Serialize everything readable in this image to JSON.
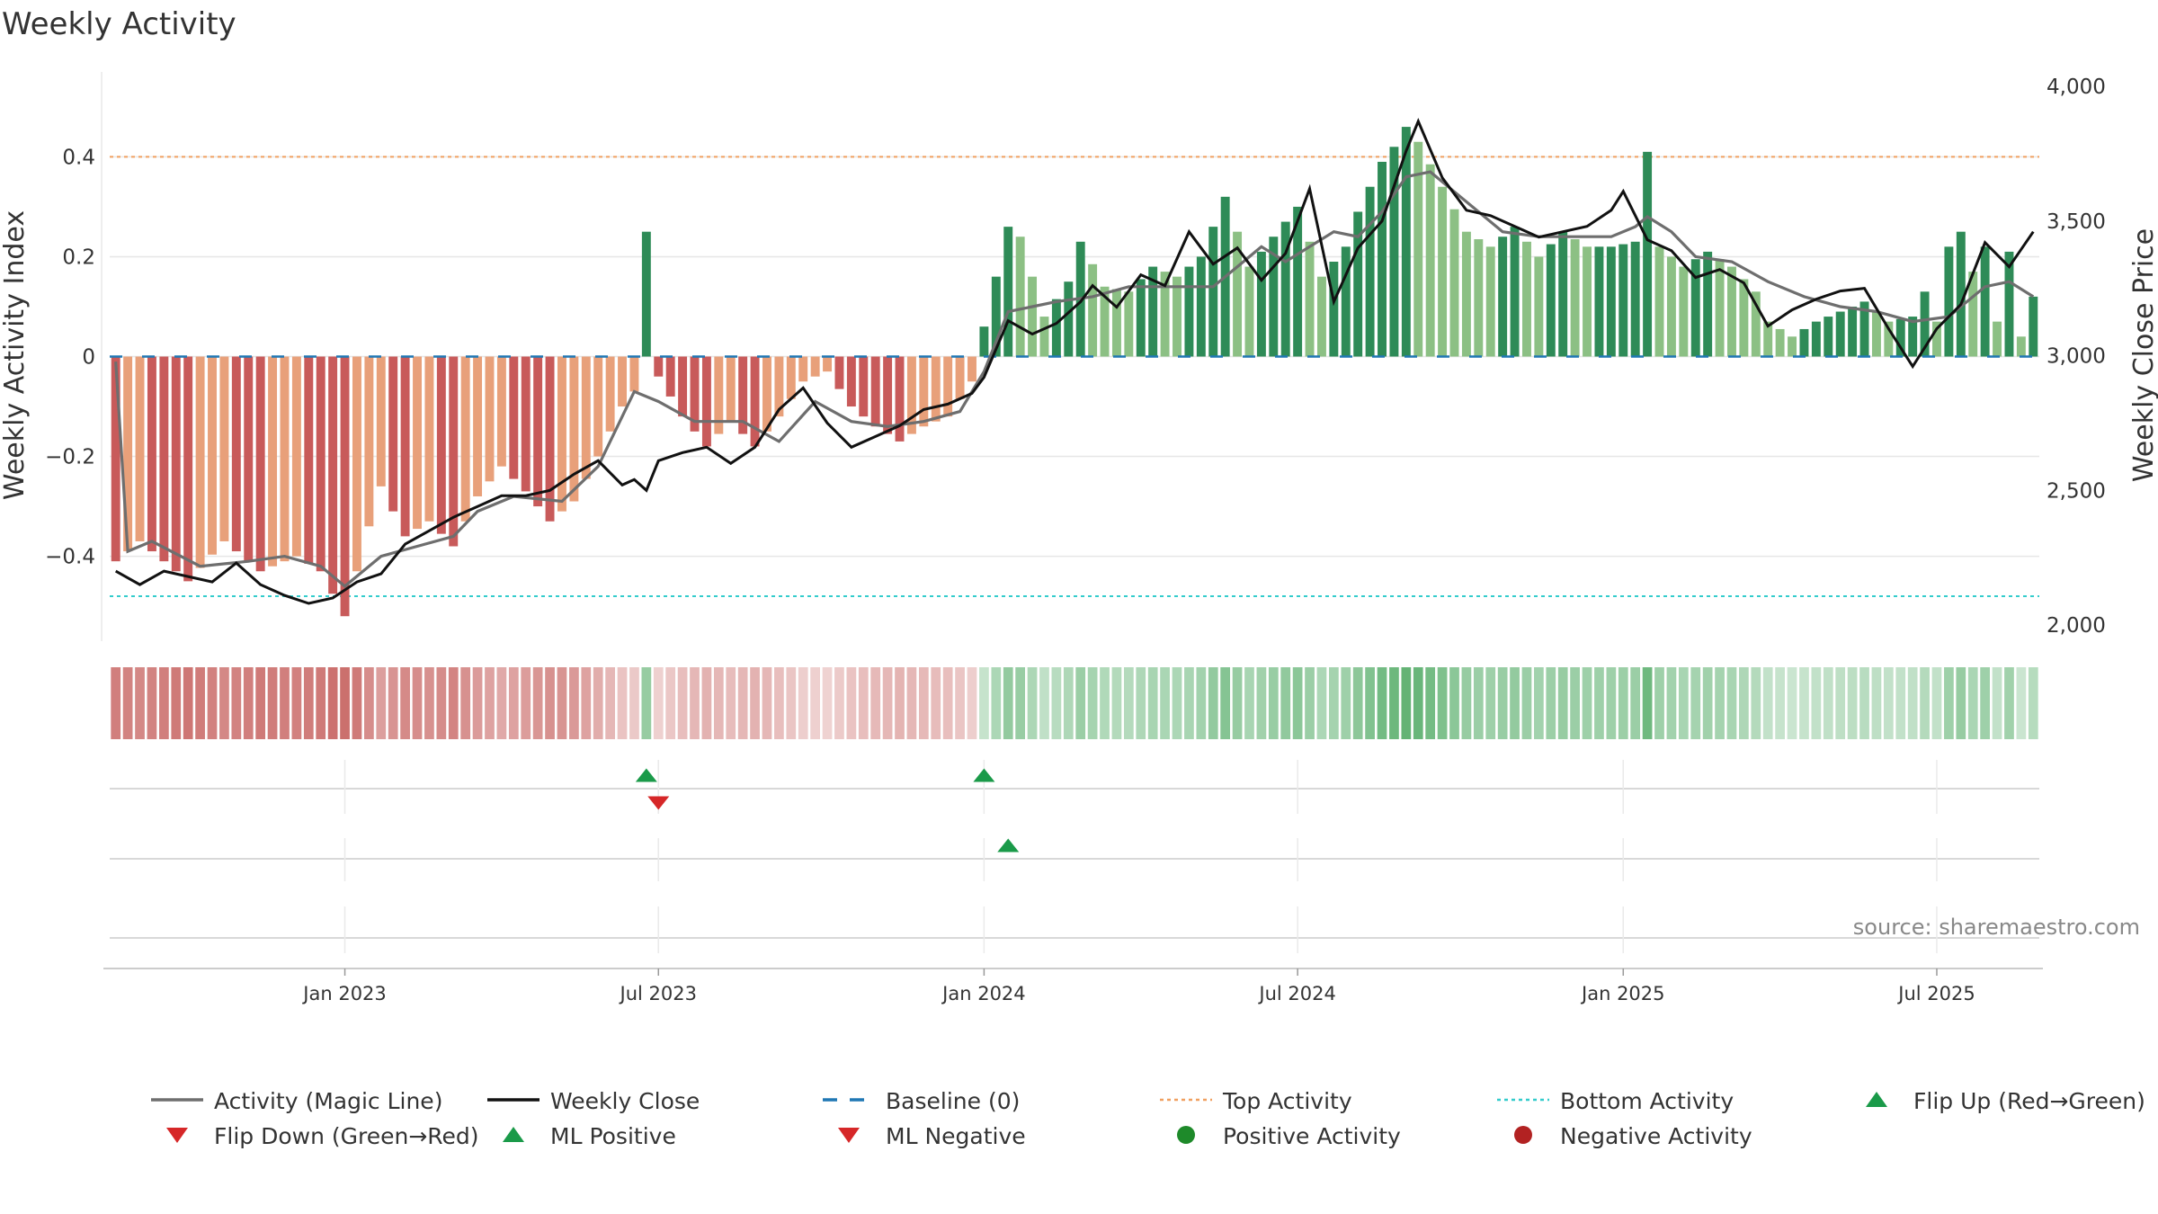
{
  "chart_data": {
    "type": "bar",
    "title": "Weekly Activity",
    "y_left_label": "Weekly Activity Index",
    "y_right_label": "Weekly Close Price",
    "y_left_range": [
      -0.57,
      0.57
    ],
    "y_right_range": [
      2000,
      4000
    ],
    "y_left_ticks": [
      {
        "value": 0.4,
        "label": "0.4"
      },
      {
        "value": 0.2,
        "label": "0.2"
      },
      {
        "value": 0,
        "label": "0"
      },
      {
        "value": -0.2,
        "label": "−0.2"
      },
      {
        "value": -0.4,
        "label": "−0.4"
      }
    ],
    "y_right_ticks": [
      {
        "value": 4000,
        "label": "4,000"
      },
      {
        "value": 3500,
        "label": "3,500"
      },
      {
        "value": 3000,
        "label": "3,000"
      },
      {
        "value": 2500,
        "label": "2,500"
      },
      {
        "value": 2000,
        "label": "2,000"
      }
    ],
    "x_ticks": [
      {
        "week": 19,
        "label": "Jan 2023"
      },
      {
        "week": 45,
        "label": "Jul 2023"
      },
      {
        "week": 72,
        "label": "Jan 2024"
      },
      {
        "week": 98,
        "label": "Jul 2024"
      },
      {
        "week": 125,
        "label": "Jan 2025"
      },
      {
        "week": 151,
        "label": "Jul 2025"
      }
    ],
    "week_count": 160,
    "top_activity": 0.4,
    "bottom_activity": -0.48,
    "activity_key_points": [
      [
        0,
        -0.41
      ],
      [
        2,
        -0.37
      ],
      [
        6,
        -0.45
      ],
      [
        9,
        -0.37
      ],
      [
        12,
        -0.43
      ],
      [
        15,
        -0.4
      ],
      [
        17,
        -0.43
      ],
      [
        19,
        -0.52
      ],
      [
        21,
        -0.34
      ],
      [
        22,
        -0.26
      ],
      [
        24,
        -0.36
      ],
      [
        26,
        -0.33
      ],
      [
        28,
        -0.38
      ],
      [
        30,
        -0.28
      ],
      [
        32,
        -0.22
      ],
      [
        34,
        -0.27
      ],
      [
        36,
        -0.33
      ],
      [
        38,
        -0.29
      ],
      [
        40,
        -0.2
      ],
      [
        42,
        -0.1
      ],
      [
        43,
        -0.07
      ],
      [
        44,
        0.25
      ],
      [
        45,
        -0.04
      ],
      [
        47,
        -0.12
      ],
      [
        49,
        -0.18
      ],
      [
        51,
        -0.13
      ],
      [
        53,
        -0.18
      ],
      [
        55,
        -0.12
      ],
      [
        57,
        -0.05
      ],
      [
        59,
        -0.03
      ],
      [
        61,
        -0.1
      ],
      [
        63,
        -0.14
      ],
      [
        65,
        -0.17
      ],
      [
        67,
        -0.14
      ],
      [
        69,
        -0.12
      ],
      [
        71,
        -0.05
      ],
      [
        72,
        0.06
      ],
      [
        73,
        0.16
      ],
      [
        74,
        0.26
      ],
      [
        75,
        0.24
      ],
      [
        77,
        0.08
      ],
      [
        79,
        0.15
      ],
      [
        80,
        0.23
      ],
      [
        82,
        0.14
      ],
      [
        84,
        0.13
      ],
      [
        86,
        0.18
      ],
      [
        88,
        0.16
      ],
      [
        90,
        0.2
      ],
      [
        92,
        0.32
      ],
      [
        94,
        0.18
      ],
      [
        96,
        0.24
      ],
      [
        98,
        0.3
      ],
      [
        100,
        0.16
      ],
      [
        102,
        0.22
      ],
      [
        103,
        0.29
      ],
      [
        105,
        0.39
      ],
      [
        106,
        0.42
      ],
      [
        107,
        0.46
      ],
      [
        108,
        0.43
      ],
      [
        110,
        0.34
      ],
      [
        112,
        0.25
      ],
      [
        114,
        0.22
      ],
      [
        116,
        0.26
      ],
      [
        118,
        0.2
      ],
      [
        120,
        0.25
      ],
      [
        122,
        0.22
      ],
      [
        124,
        0.22
      ],
      [
        126,
        0.23
      ],
      [
        127,
        0.41
      ],
      [
        128,
        0.22
      ],
      [
        130,
        0.18
      ],
      [
        132,
        0.21
      ],
      [
        134,
        0.18
      ],
      [
        136,
        0.13
      ],
      [
        137,
        0.07
      ],
      [
        139,
        0.04
      ],
      [
        141,
        0.07
      ],
      [
        143,
        0.09
      ],
      [
        145,
        0.11
      ],
      [
        147,
        0.07
      ],
      [
        149,
        0.08
      ],
      [
        150,
        0.13
      ],
      [
        151,
        0.07
      ],
      [
        152,
        0.22
      ],
      [
        153,
        0.25
      ],
      [
        154,
        0.17
      ],
      [
        155,
        0.22
      ],
      [
        156,
        0.07
      ],
      [
        157,
        0.21
      ],
      [
        158,
        0.04
      ],
      [
        159,
        0.12
      ]
    ],
    "magic_line_points": [
      [
        0,
        -0.01
      ],
      [
        1,
        -0.39
      ],
      [
        3,
        -0.37
      ],
      [
        7,
        -0.42
      ],
      [
        11,
        -0.41
      ],
      [
        14,
        -0.4
      ],
      [
        17,
        -0.42
      ],
      [
        19,
        -0.46
      ],
      [
        22,
        -0.4
      ],
      [
        25,
        -0.38
      ],
      [
        28,
        -0.36
      ],
      [
        30,
        -0.31
      ],
      [
        33,
        -0.28
      ],
      [
        37,
        -0.29
      ],
      [
        40,
        -0.22
      ],
      [
        43,
        -0.07
      ],
      [
        45,
        -0.09
      ],
      [
        48,
        -0.13
      ],
      [
        52,
        -0.13
      ],
      [
        55,
        -0.17
      ],
      [
        58,
        -0.09
      ],
      [
        61,
        -0.13
      ],
      [
        64,
        -0.14
      ],
      [
        67,
        -0.13
      ],
      [
        70,
        -0.11
      ],
      [
        72,
        -0.03
      ],
      [
        74,
        0.09
      ],
      [
        76,
        0.1
      ],
      [
        78,
        0.11
      ],
      [
        81,
        0.12
      ],
      [
        84,
        0.14
      ],
      [
        86,
        0.14
      ],
      [
        88,
        0.14
      ],
      [
        91,
        0.14
      ],
      [
        93,
        0.18
      ],
      [
        95,
        0.22
      ],
      [
        97,
        0.19
      ],
      [
        99,
        0.22
      ],
      [
        101,
        0.25
      ],
      [
        103,
        0.24
      ],
      [
        105,
        0.29
      ],
      [
        107,
        0.36
      ],
      [
        109,
        0.37
      ],
      [
        111,
        0.33
      ],
      [
        113,
        0.29
      ],
      [
        115,
        0.25
      ],
      [
        118,
        0.24
      ],
      [
        121,
        0.24
      ],
      [
        124,
        0.24
      ],
      [
        126,
        0.26
      ],
      [
        127,
        0.28
      ],
      [
        129,
        0.25
      ],
      [
        131,
        0.2
      ],
      [
        134,
        0.19
      ],
      [
        137,
        0.15
      ],
      [
        140,
        0.12
      ],
      [
        143,
        0.1
      ],
      [
        146,
        0.09
      ],
      [
        149,
        0.07
      ],
      [
        152,
        0.08
      ],
      [
        155,
        0.14
      ],
      [
        157,
        0.15
      ],
      [
        159,
        0.12
      ]
    ],
    "close_price_points": [
      [
        0,
        2200
      ],
      [
        2,
        2150
      ],
      [
        4,
        2200
      ],
      [
        6,
        2180
      ],
      [
        8,
        2160
      ],
      [
        10,
        2230
      ],
      [
        12,
        2150
      ],
      [
        14,
        2110
      ],
      [
        16,
        2080
      ],
      [
        18,
        2100
      ],
      [
        20,
        2160
      ],
      [
        22,
        2190
      ],
      [
        24,
        2300
      ],
      [
        26,
        2350
      ],
      [
        28,
        2400
      ],
      [
        30,
        2440
      ],
      [
        32,
        2480
      ],
      [
        34,
        2480
      ],
      [
        36,
        2500
      ],
      [
        38,
        2560
      ],
      [
        40,
        2610
      ],
      [
        42,
        2520
      ],
      [
        43,
        2540
      ],
      [
        44,
        2500
      ],
      [
        45,
        2610
      ],
      [
        47,
        2640
      ],
      [
        49,
        2660
      ],
      [
        51,
        2600
      ],
      [
        53,
        2660
      ],
      [
        55,
        2800
      ],
      [
        57,
        2880
      ],
      [
        59,
        2750
      ],
      [
        61,
        2660
      ],
      [
        63,
        2700
      ],
      [
        65,
        2740
      ],
      [
        67,
        2800
      ],
      [
        69,
        2820
      ],
      [
        71,
        2860
      ],
      [
        72,
        2920
      ],
      [
        74,
        3130
      ],
      [
        76,
        3080
      ],
      [
        78,
        3120
      ],
      [
        80,
        3200
      ],
      [
        81,
        3260
      ],
      [
        83,
        3180
      ],
      [
        85,
        3300
      ],
      [
        87,
        3260
      ],
      [
        89,
        3460
      ],
      [
        91,
        3340
      ],
      [
        93,
        3400
      ],
      [
        95,
        3280
      ],
      [
        97,
        3380
      ],
      [
        99,
        3620
      ],
      [
        101,
        3200
      ],
      [
        103,
        3400
      ],
      [
        105,
        3500
      ],
      [
        107,
        3760
      ],
      [
        108,
        3870
      ],
      [
        110,
        3660
      ],
      [
        112,
        3540
      ],
      [
        114,
        3520
      ],
      [
        116,
        3480
      ],
      [
        118,
        3440
      ],
      [
        120,
        3460
      ],
      [
        122,
        3480
      ],
      [
        124,
        3540
      ],
      [
        125,
        3610
      ],
      [
        127,
        3430
      ],
      [
        129,
        3390
      ],
      [
        131,
        3290
      ],
      [
        133,
        3320
      ],
      [
        135,
        3270
      ],
      [
        137,
        3110
      ],
      [
        139,
        3170
      ],
      [
        141,
        3210
      ],
      [
        143,
        3240
      ],
      [
        145,
        3250
      ],
      [
        147,
        3100
      ],
      [
        149,
        2960
      ],
      [
        151,
        3100
      ],
      [
        153,
        3190
      ],
      [
        155,
        3420
      ],
      [
        157,
        3330
      ],
      [
        159,
        3460
      ]
    ],
    "flip_up_weeks": [
      44,
      72
    ],
    "flip_down_weeks": [
      45
    ],
    "ml_positive_weeks": [
      74
    ],
    "ml_negative_weeks": [],
    "legend": [
      {
        "label": "Activity (Magic Line)",
        "symbol": "line",
        "color": "#6e6e6e"
      },
      {
        "label": "Weekly Close",
        "symbol": "line",
        "color": "#111111"
      },
      {
        "label": "Baseline (0)",
        "symbol": "dash",
        "color": "#1f77b4"
      },
      {
        "label": "Top Activity",
        "symbol": "dot",
        "color": "#f0a060"
      },
      {
        "label": "Bottom Activity",
        "symbol": "dot",
        "color": "#33cccc"
      },
      {
        "label": "Flip Up (Red→Green)",
        "symbol": "triangle-up",
        "color": "#1a9a49"
      },
      {
        "label": "Flip Down (Green→Red)",
        "symbol": "triangle-down",
        "color": "#d62728"
      },
      {
        "label": "ML Positive",
        "symbol": "triangle-up",
        "color": "#1a9a49"
      },
      {
        "label": "ML Negative",
        "symbol": "triangle-down",
        "color": "#d62728"
      },
      {
        "label": "Positive Activity",
        "symbol": "circle",
        "color": "#1e8a2a"
      },
      {
        "label": "Negative Activity",
        "symbol": "circle",
        "color": "#b22222"
      }
    ],
    "source": "source: sharemaestro.com"
  },
  "colors": {
    "pos_dark": "#2e8b57",
    "pos_light": "#8cc084",
    "neg_dark": "#c85a5a",
    "neg_light": "#e8a07a",
    "magic_line": "#6e6e6e",
    "close_line": "#111111",
    "baseline": "#1f77b4",
    "top": "#f0a060",
    "bottom": "#33cccc",
    "grid": "#e6e6e6"
  }
}
